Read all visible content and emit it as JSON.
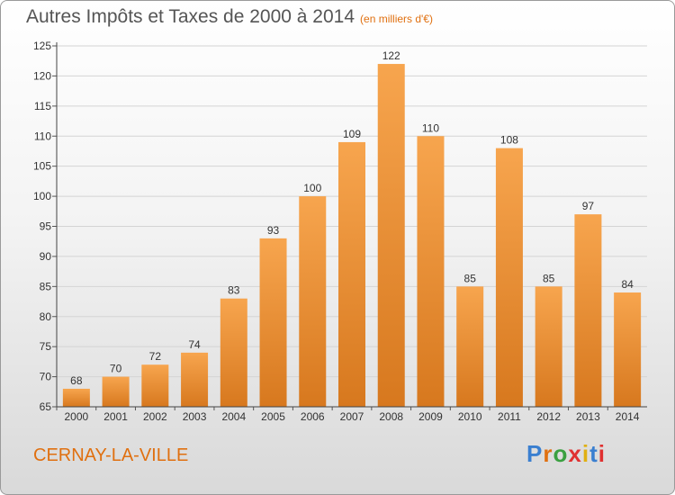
{
  "title": "Autres Impôts et Taxes de 2000 à 2014",
  "unit_note": "(en milliers d'€)",
  "city": "CERNAY-LA-VILLE",
  "logo": {
    "text": "Proxiti",
    "letter_colors": [
      "#3a7fd0",
      "#e07010",
      "#3aa040",
      "#e03030",
      "#e0b010",
      "#3a7fd0",
      "#e03030"
    ]
  },
  "chart_data": {
    "type": "bar",
    "categories": [
      "2000",
      "2001",
      "2002",
      "2003",
      "2004",
      "2005",
      "2006",
      "2007",
      "2008",
      "2009",
      "2010",
      "2011",
      "2012",
      "2013",
      "2014"
    ],
    "values": [
      68,
      70,
      72,
      74,
      83,
      93,
      100,
      109,
      122,
      110,
      85,
      108,
      85,
      97,
      84
    ],
    "ylim": [
      65,
      125
    ],
    "yticks": [
      65,
      70,
      75,
      80,
      85,
      90,
      95,
      100,
      105,
      110,
      115,
      120,
      125
    ],
    "grid": true,
    "bar_color": "#f0963a"
  }
}
